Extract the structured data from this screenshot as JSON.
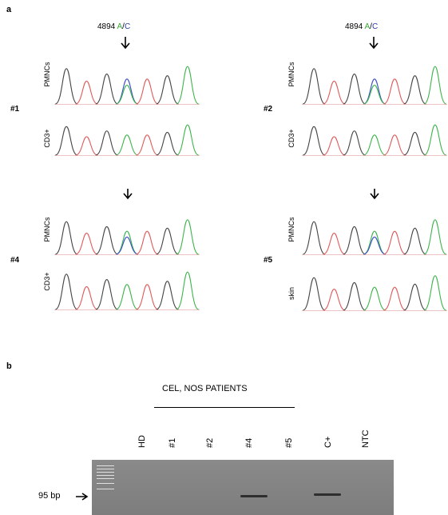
{
  "panel_a": {
    "label": "a",
    "mutation_pos": "4894",
    "allele_a": "A",
    "slash": "/",
    "allele_c": "C",
    "groups": [
      {
        "id": "#1",
        "top_label": "PMNCs",
        "bottom_label": "CD3+",
        "arrow": "labelled",
        "top_peaks": [
          "k",
          "r",
          "k",
          "b",
          "r",
          "k",
          "g"
        ],
        "het_top": 3,
        "bottom_peaks": [
          "k",
          "r",
          "k",
          "g",
          "r",
          "k",
          "g"
        ]
      },
      {
        "id": "#2",
        "top_label": "PMNCs",
        "bottom_label": "CD3+",
        "arrow": "labelled",
        "top_peaks": [
          "k",
          "r",
          "k",
          "b",
          "r",
          "k",
          "g"
        ],
        "het_top": 3,
        "bottom_peaks": [
          "k",
          "r",
          "k",
          "g",
          "r",
          "k",
          "g"
        ]
      },
      {
        "id": "#4",
        "top_label": "PMNCs",
        "bottom_label": "CD3+",
        "arrow": "plain",
        "top_peaks": [
          "k",
          "r",
          "k",
          "g",
          "r",
          "k",
          "g"
        ],
        "het_top": 3,
        "bottom_peaks": [
          "k",
          "r",
          "k",
          "g",
          "r",
          "k",
          "g"
        ]
      },
      {
        "id": "#5",
        "top_label": "PMNCs",
        "bottom_label": "skin",
        "arrow": "plain",
        "top_peaks": [
          "k",
          "r",
          "k",
          "g",
          "r",
          "k",
          "g"
        ],
        "het_top": 3,
        "bottom_peaks": [
          "k",
          "r",
          "k",
          "g",
          "r",
          "k",
          "g"
        ]
      }
    ]
  },
  "panel_b": {
    "label": "b",
    "group_title": "CEL, NOS PATIENTS",
    "lanes": [
      "HD",
      "#1",
      "#2",
      "#4",
      "#5",
      "C+",
      "NTC"
    ],
    "bands": [
      false,
      false,
      false,
      true,
      false,
      true,
      false
    ],
    "size_marker": "95 bp",
    "colors": {
      "gel": "#828282",
      "band": "#2e2e2e",
      "ladder": "#e6e6e6"
    }
  },
  "trace_colors": {
    "k": "#444444",
    "r": "#e05a5a",
    "g": "#3cb44b",
    "b": "#3a4fc8"
  }
}
